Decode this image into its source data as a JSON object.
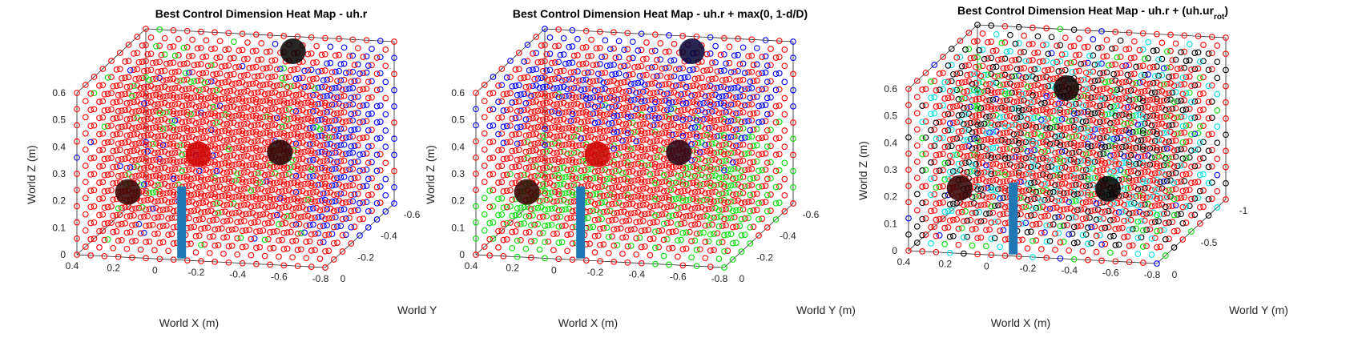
{
  "figure": {
    "legend": "none",
    "grid": true,
    "marker": "open-circle",
    "marker_colors": {
      "red": "#ff0000",
      "blue": "#0000ff",
      "green": "#00e000",
      "black": "#000000",
      "cyan": "#00e0e0"
    },
    "sphere_color": "#000000",
    "obstacle_sphere_color": "#ff0000",
    "pole_color": "#1f77b4"
  },
  "chart_data": [
    {
      "type": "scatter",
      "title": "Best Control Dimension Heat Map - uh.r",
      "title_sub": "",
      "title_suffix": "",
      "xlabel": "World X (m)",
      "ylabel": "World Y",
      "zlabel": "World Z (m)",
      "xlim": [
        -0.8,
        0.5
      ],
      "ylim": [
        -0.6,
        0
      ],
      "zlim": [
        0,
        0.6
      ],
      "xticks": [
        "0.4",
        "0.2",
        "0",
        "-0.2",
        "-0.4",
        "-0.6",
        "-0.8"
      ],
      "yticks": [
        "0",
        "-0.2",
        "-0.4",
        "-0.6"
      ],
      "zticks": [
        "0",
        "0.1",
        "0.2",
        "0.3",
        "0.4",
        "0.5",
        "0.6"
      ],
      "point_categories": [
        "red",
        "blue",
        "green"
      ],
      "dominant": "red"
    },
    {
      "type": "scatter",
      "title": "Best Control Dimension Heat Map - uh.r + max(0, 1-d/D)",
      "title_sub": "",
      "title_suffix": "",
      "xlabel": "World X (m)",
      "ylabel": "World Y (m)",
      "zlabel": "World Z (m)",
      "xlim": [
        -0.8,
        0.5
      ],
      "ylim": [
        -0.6,
        0
      ],
      "zlim": [
        0,
        0.6
      ],
      "xticks": [
        "0.4",
        "0.2",
        "0",
        "-0.2",
        "-0.4",
        "-0.6",
        "-0.8"
      ],
      "yticks": [
        "0",
        "-0.2",
        "-0.4",
        "-0.6"
      ],
      "zticks": [
        "0",
        "0.1",
        "0.2",
        "0.3",
        "0.4",
        "0.5",
        "0.6"
      ],
      "point_categories": [
        "red",
        "blue",
        "green"
      ],
      "dominant": "red"
    },
    {
      "type": "scatter",
      "title": "Best Control Dimension Heat Map - uh.r + (uh.ur",
      "title_sub": "rot",
      "title_suffix": ")",
      "xlabel": "World X (m)",
      "ylabel": "World Y (m)",
      "zlabel": "World Z (m)",
      "xlim": [
        -0.8,
        0.5
      ],
      "ylim": [
        -1,
        0
      ],
      "zlim": [
        0,
        0.6
      ],
      "xticks": [
        "0.4",
        "0.2",
        "0",
        "-0.2",
        "-0.4",
        "-0.6",
        "-0.8"
      ],
      "yticks": [
        "0",
        "-0.5",
        "-1"
      ],
      "zticks": [
        "0",
        "0.1",
        "0.2",
        "0.3",
        "0.4",
        "0.5",
        "0.6"
      ],
      "point_categories": [
        "red",
        "black",
        "cyan",
        "green",
        "blue"
      ],
      "dominant": "red"
    }
  ]
}
